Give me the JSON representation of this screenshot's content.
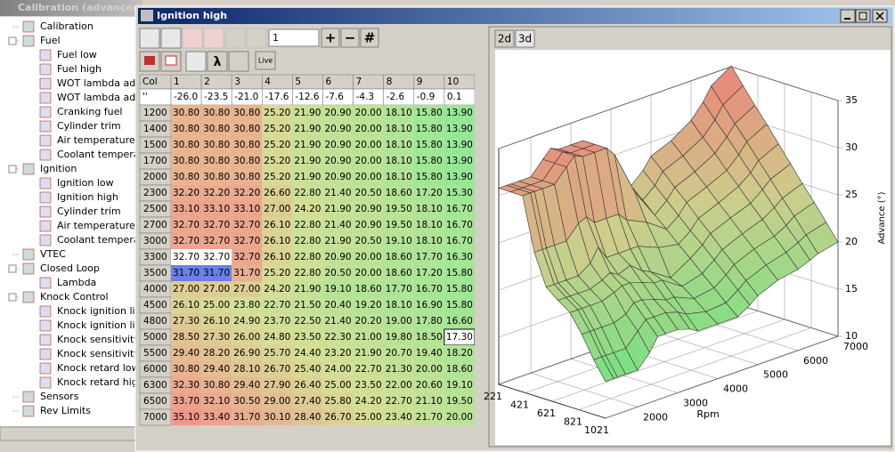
{
  "background_window": {
    "title": "Calibration (advanced)",
    "tree": [
      {
        "label": "Calibration"
      },
      {
        "label": "Fuel",
        "children": [
          {
            "label": "Fuel low"
          },
          {
            "label": "Fuel high"
          },
          {
            "label": "WOT lambda adju"
          },
          {
            "label": "WOT lambda adju"
          },
          {
            "label": "Cranking fuel"
          },
          {
            "label": "Cylinder trim"
          },
          {
            "label": "Air temperature co"
          },
          {
            "label": "Coolant temperatu"
          }
        ]
      },
      {
        "label": "Ignition",
        "children": [
          {
            "label": "Ignition low"
          },
          {
            "label": "Ignition high"
          },
          {
            "label": "Cylinder trim"
          },
          {
            "label": "Air temperature co"
          },
          {
            "label": "Coolant temperatu"
          }
        ]
      },
      {
        "label": "VTEC"
      },
      {
        "label": "Closed Loop",
        "children": [
          {
            "label": "Lambda"
          }
        ]
      },
      {
        "label": "Knock Control",
        "children": [
          {
            "label": "Knock ignition limit"
          },
          {
            "label": "Knock ignition limit"
          },
          {
            "label": "Knock sensitivity lo"
          },
          {
            "label": "Knock sensitivity h"
          },
          {
            "label": "Knock retard low"
          },
          {
            "label": "Knock retard high"
          }
        ]
      },
      {
        "label": "Sensors"
      },
      {
        "label": "Rev Limits"
      }
    ]
  },
  "window": {
    "title": "Ignition high",
    "toolbar": {
      "input": "1",
      "buttons": [
        "+",
        "−",
        "#"
      ],
      "lambda": "λ",
      "live": "Live"
    },
    "table": {
      "header": [
        "Col",
        "1",
        "2",
        "3",
        "4",
        "5",
        "6",
        "7",
        "8",
        "9",
        "10"
      ],
      "subheader": [
        "''",
        "-26.0",
        "-23.5",
        "-21.0",
        "-17.6",
        "-12.6",
        "-7.6",
        "-4.3",
        "-2.6",
        "-0.9",
        "0.1"
      ],
      "rows": [
        {
          "label": "1200",
          "values": [
            "30.80",
            "30.80",
            "30.80",
            "25.20",
            "21.90",
            "20.90",
            "20.00",
            "18.10",
            "15.80",
            "13.90"
          ]
        },
        {
          "label": "1400",
          "values": [
            "30.80",
            "30.80",
            "30.80",
            "25.20",
            "21.90",
            "20.90",
            "20.00",
            "18.10",
            "15.80",
            "13.90"
          ]
        },
        {
          "label": "1500",
          "values": [
            "30.80",
            "30.80",
            "30.80",
            "25.20",
            "21.90",
            "20.90",
            "20.00",
            "18.10",
            "15.80",
            "13.90"
          ]
        },
        {
          "label": "1700",
          "values": [
            "30.80",
            "30.80",
            "30.80",
            "25.20",
            "21.90",
            "20.90",
            "20.00",
            "18.10",
            "15.80",
            "13.90"
          ]
        },
        {
          "label": "2000",
          "values": [
            "30.80",
            "30.80",
            "30.80",
            "25.20",
            "21.90",
            "20.90",
            "20.00",
            "18.10",
            "15.80",
            "13.90"
          ]
        },
        {
          "label": "2300",
          "values": [
            "32.20",
            "32.20",
            "32.20",
            "26.60",
            "22.80",
            "21.40",
            "20.50",
            "18.60",
            "17.20",
            "15.30"
          ]
        },
        {
          "label": "2500",
          "values": [
            "33.10",
            "33.10",
            "33.10",
            "27.00",
            "24.20",
            "21.90",
            "20.90",
            "19.50",
            "18.10",
            "16.70"
          ]
        },
        {
          "label": "2700",
          "values": [
            "32.70",
            "32.70",
            "32.70",
            "26.10",
            "22.80",
            "21.40",
            "20.90",
            "19.50",
            "18.10",
            "16.70"
          ]
        },
        {
          "label": "3000",
          "values": [
            "32.70",
            "32.70",
            "32.70",
            "26.10",
            "22.80",
            "21.90",
            "20.50",
            "19.10",
            "18.10",
            "16.70"
          ]
        },
        {
          "label": "3300",
          "values": [
            "32.70",
            "32.70",
            "32.70",
            "26.10",
            "22.80",
            "20.90",
            "20.00",
            "18.60",
            "17.70",
            "16.30"
          ]
        },
        {
          "label": "3500",
          "values": [
            "31.70",
            "31.70",
            "31.70",
            "25.20",
            "22.80",
            "20.50",
            "20.00",
            "18.60",
            "17.20",
            "15.80"
          ]
        },
        {
          "label": "4000",
          "values": [
            "27.00",
            "27.00",
            "27.00",
            "24.20",
            "21.90",
            "19.10",
            "18.60",
            "17.70",
            "16.70",
            "15.80"
          ]
        },
        {
          "label": "4500",
          "values": [
            "26.10",
            "25.00",
            "23.80",
            "22.70",
            "21.50",
            "20.40",
            "19.20",
            "18.10",
            "16.90",
            "15.80"
          ]
        },
        {
          "label": "4800",
          "values": [
            "27.30",
            "26.10",
            "24.90",
            "23.70",
            "22.50",
            "21.40",
            "20.20",
            "19.00",
            "17.80",
            "16.60"
          ]
        },
        {
          "label": "5000",
          "values": [
            "28.50",
            "27.30",
            "26.00",
            "24.80",
            "23.50",
            "22.30",
            "21.00",
            "19.80",
            "18.50",
            "17.30"
          ]
        },
        {
          "label": "5500",
          "values": [
            "29.40",
            "28.20",
            "26.90",
            "25.70",
            "24.40",
            "23.20",
            "21.90",
            "20.70",
            "19.40",
            "18.20"
          ]
        },
        {
          "label": "6000",
          "values": [
            "30.80",
            "29.40",
            "28.10",
            "26.70",
            "25.40",
            "24.00",
            "22.70",
            "21.30",
            "20.00",
            "18.60"
          ]
        },
        {
          "label": "6300",
          "values": [
            "32.30",
            "30.80",
            "29.40",
            "27.90",
            "26.40",
            "25.00",
            "23.50",
            "22.00",
            "20.60",
            "19.10"
          ]
        },
        {
          "label": "6500",
          "values": [
            "33.70",
            "32.10",
            "30.50",
            "29.00",
            "27.40",
            "25.80",
            "24.20",
            "22.70",
            "21.10",
            "19.50"
          ]
        },
        {
          "label": "7000",
          "values": [
            "35.10",
            "33.40",
            "31.70",
            "30.10",
            "28.40",
            "26.70",
            "25.00",
            "23.40",
            "21.70",
            "20.00"
          ]
        }
      ]
    },
    "view": {
      "tabs": [
        "2d",
        "3d"
      ],
      "surface": {
        "z_label": "Advance (°)",
        "zlim": [
          10,
          35
        ],
        "zticks": [
          10,
          15,
          20,
          25,
          30,
          35
        ],
        "y_label": "Rpm",
        "ylim": [
          1200,
          7000
        ],
        "yticks": [
          2000,
          3000,
          4000,
          5000,
          6000,
          7000
        ],
        "xlim": [
          221,
          1021
        ],
        "xticks": [
          221,
          421,
          621,
          821,
          1021
        ]
      }
    }
  }
}
